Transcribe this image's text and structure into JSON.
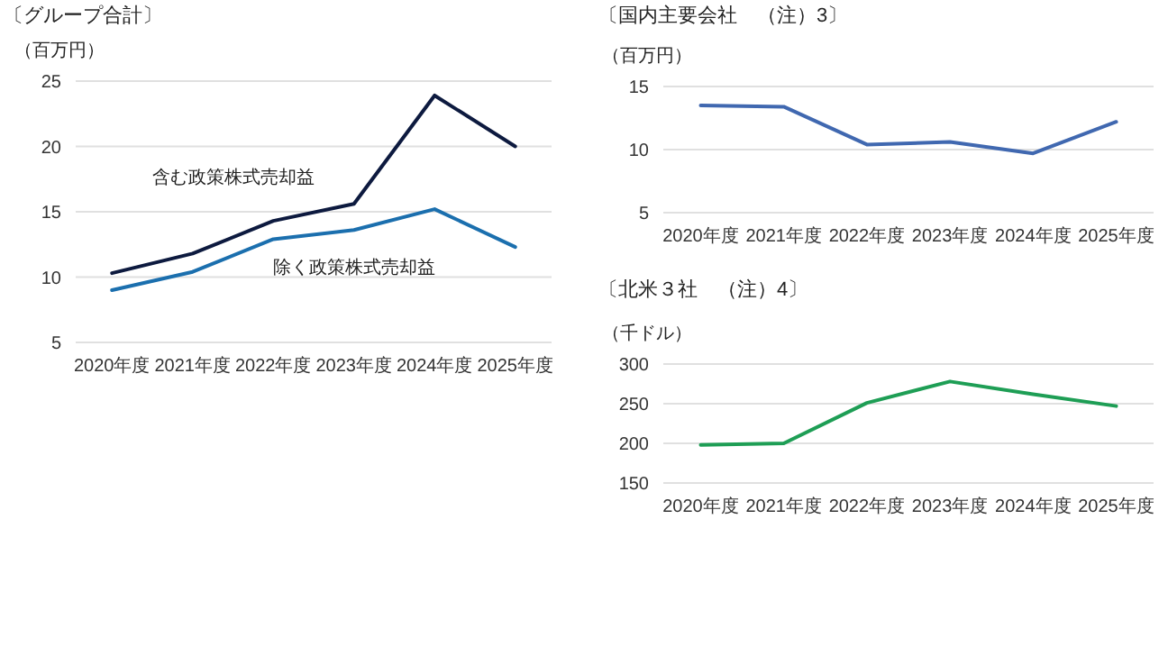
{
  "chart_data": [
    {
      "type": "line",
      "title": "〔グループ合計〕",
      "ylabel": "（百万円）",
      "categories": [
        "2020年度",
        "2021年度",
        "2022年度",
        "2023年度",
        "2024年度",
        "2025年度"
      ],
      "ylim": [
        5,
        25
      ],
      "yticks": [
        5,
        10,
        15,
        20,
        25
      ],
      "grid": "y",
      "series": [
        {
          "name": "含む政策株式売却益",
          "color": "#0d1a3f",
          "values": [
            10.3,
            11.8,
            14.3,
            15.6,
            23.9,
            20.0
          ]
        },
        {
          "name": "除く政策株式売却益",
          "color": "#1b6fae",
          "values": [
            9.0,
            10.4,
            12.9,
            13.6,
            15.2,
            12.3
          ]
        }
      ]
    },
    {
      "type": "line",
      "title": "〔国内主要会社　（注）3〕",
      "ylabel": "（百万円）",
      "categories": [
        "2020年度",
        "2021年度",
        "2022年度",
        "2023年度",
        "2024年度",
        "2025年度"
      ],
      "ylim": [
        5,
        15
      ],
      "yticks": [
        5,
        10,
        15
      ],
      "grid": "y",
      "series": [
        {
          "color": "#4068b0",
          "values": [
            13.5,
            13.4,
            10.4,
            10.6,
            9.7,
            12.2
          ]
        }
      ]
    },
    {
      "type": "line",
      "title": "〔北米３社　（注）4〕",
      "ylabel": "（千ドル）",
      "categories": [
        "2020年度",
        "2021年度",
        "2022年度",
        "2023年度",
        "2024年度",
        "2025年度"
      ],
      "ylim": [
        150,
        300
      ],
      "yticks": [
        150,
        200,
        250,
        300
      ],
      "grid": "y",
      "series": [
        {
          "color": "#1e9e55",
          "values": [
            198,
            200,
            251,
            278,
            262,
            247
          ]
        }
      ]
    }
  ]
}
